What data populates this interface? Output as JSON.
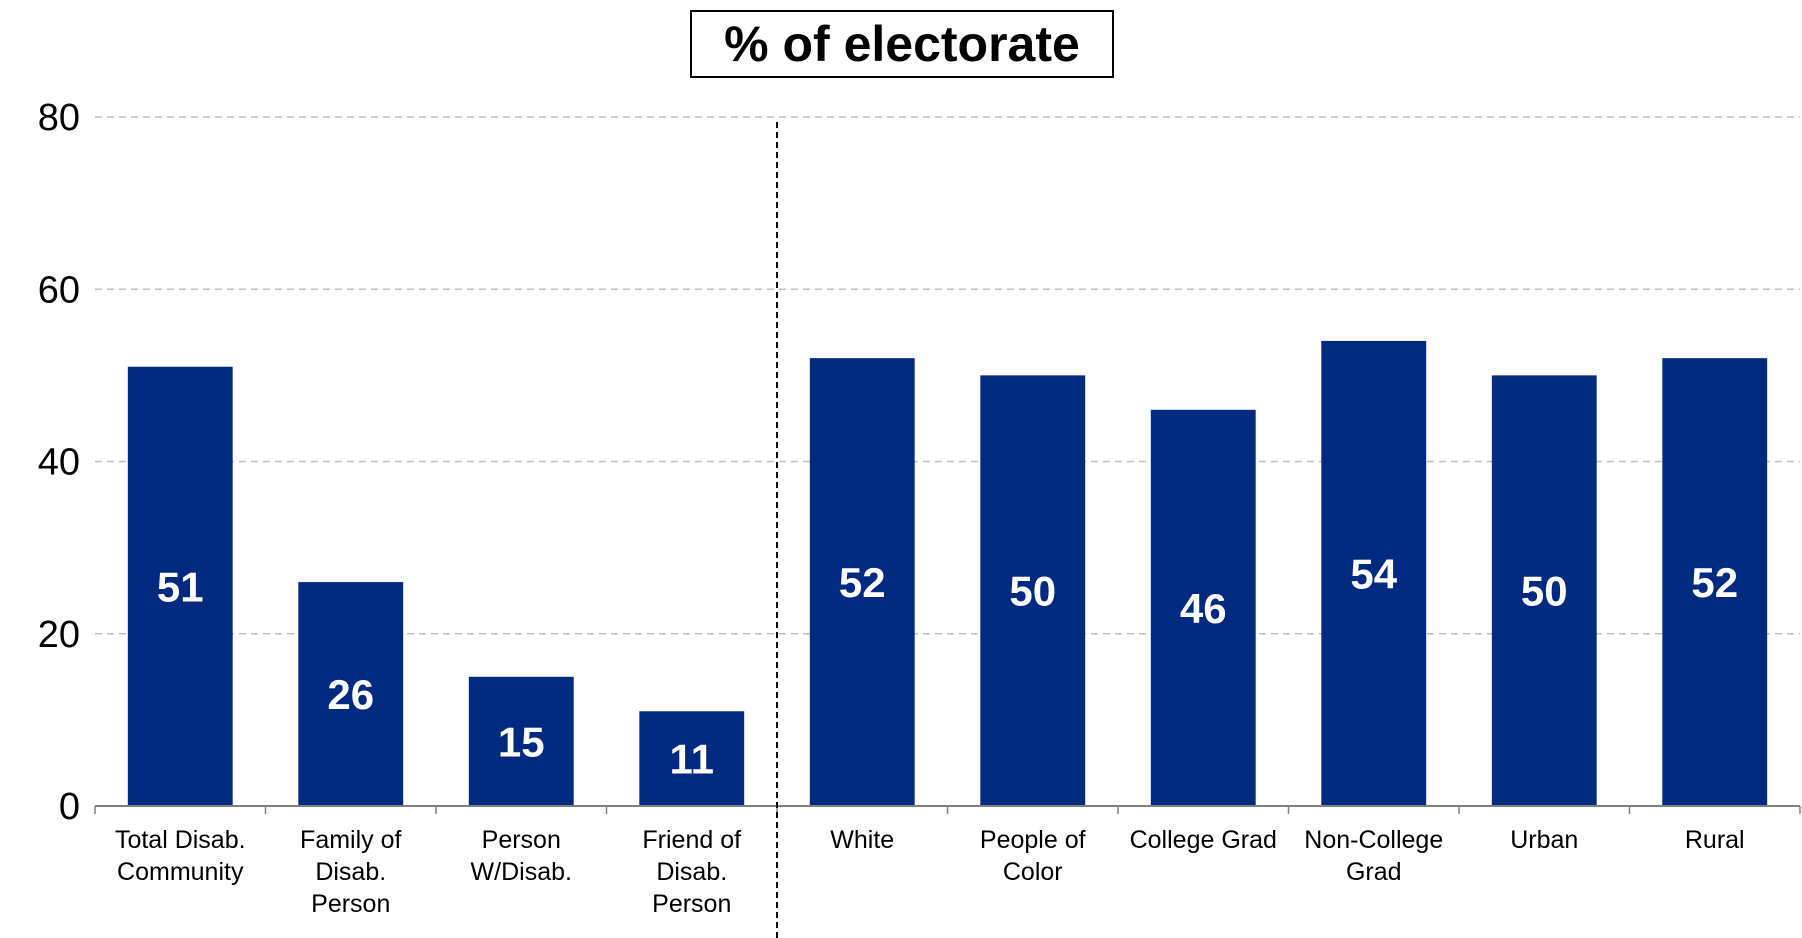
{
  "chart_data": {
    "type": "bar",
    "title": "% of electorate",
    "categories": [
      [
        "Total Disab.",
        "Community"
      ],
      [
        "Family of",
        "Disab.",
        "Person"
      ],
      [
        "Person",
        "W/Disab."
      ],
      [
        "Friend of",
        "Disab.",
        "Person"
      ],
      [
        "White"
      ],
      [
        "People of",
        "Color"
      ],
      [
        "College Grad"
      ],
      [
        "Non-College",
        "Grad"
      ],
      [
        "Urban"
      ],
      [
        "Rural"
      ]
    ],
    "values": [
      51,
      26,
      15,
      11,
      52,
      50,
      46,
      54,
      50,
      52
    ],
    "data_labels": [
      "51",
      "26",
      "15",
      "11",
      "52",
      "50",
      "46",
      "54",
      "50",
      "52"
    ],
    "ylim": [
      0,
      80
    ],
    "yticks": [
      "0",
      "20",
      "40",
      "60",
      "80"
    ],
    "xlabel": "",
    "ylabel": "",
    "grid": true,
    "divider_after_index": 3,
    "colors": {
      "bar": "#002A7F",
      "grid": "#BFBFBF",
      "label": "#FFFFFF"
    }
  }
}
